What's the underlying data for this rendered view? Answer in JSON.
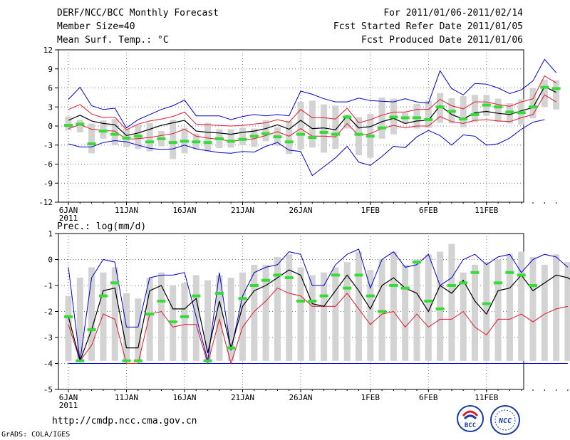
{
  "header": {
    "title": "DERF/NCC/BCC Monthly Forecast",
    "member": "Member Size=40",
    "variable": "Mean Surf. Temp.: °C",
    "period": "For 2011/01/06-2011/02/14",
    "started": "Fcst Started Refer Date 2011/01/05",
    "produced": "Fcst Produced Date 2011/01/06"
  },
  "footer": {
    "url": "http://cmdp.ncc.cma.gov.cn",
    "grads": "GrADS: COLA/IGES",
    "logo_bcc": "BCC",
    "logo_ncc": "NCC"
  },
  "colors": {
    "spread": "#d3d3d3",
    "envelope": "#0000cd",
    "inner": "#e0162b",
    "mean": "#000000",
    "control": "#33dd33"
  },
  "chart_data": [
    {
      "type": "line",
      "title": "Mean Surf. Temp.: °C",
      "ylabel": "°C",
      "ylim": [
        -12,
        12
      ],
      "yticks": [
        -12,
        -9,
        -6,
        -3,
        0,
        3,
        6,
        9,
        12
      ],
      "x": "days 0..39 (2011-01-06 .. 2011-02-14)",
      "xtick_labels": [
        "6JAN",
        "11JAN",
        "16JAN",
        "21JAN",
        "26JAN",
        "1FEB",
        "6FEB",
        "11FEB"
      ],
      "xtick_days": [
        0,
        5,
        10,
        15,
        20,
        26,
        31,
        36
      ],
      "year_label": "2011",
      "series": [
        {
          "name": "max",
          "values": [
            4.2,
            6.1,
            3.2,
            2.6,
            2.8,
            -0.3,
            1.0,
            1.8,
            2.6,
            3.2,
            4.1,
            1.6,
            1.6,
            1.6,
            1.0,
            1.5,
            1.8,
            1.6,
            1.8,
            1.6,
            5.5,
            5.0,
            4.3,
            3.8,
            3.8,
            4.4,
            4.0,
            3.9,
            3.8,
            4.3,
            3.8,
            3.6,
            8.7,
            5.9,
            4.9,
            6.7,
            6.6,
            6.0,
            5.1,
            5.7,
            7.1,
            10.5,
            8.4
          ]
        },
        {
          "name": "upper",
          "values": [
            2.6,
            3.4,
            1.9,
            1.3,
            1.4,
            -0.6,
            0.3,
            0.8,
            1.1,
            1.5,
            2.2,
            0.3,
            0.2,
            0.1,
            0.0,
            0.1,
            0.3,
            0.5,
            1.0,
            0.6,
            2.6,
            1.3,
            1.3,
            1.1,
            2.8,
            0.5,
            1.0,
            1.7,
            2.2,
            2.2,
            2.6,
            2.6,
            4.2,
            3.2,
            2.7,
            3.8,
            3.8,
            3.4,
            3.1,
            3.8,
            4.3,
            7.9,
            6.8
          ]
        },
        {
          "name": "mean",
          "values": [
            0.9,
            1.7,
            0.8,
            0.4,
            0.2,
            -1.5,
            -1.1,
            -0.5,
            0.1,
            0.5,
            0.9,
            -0.8,
            -1.0,
            -1.1,
            -1.3,
            -1.0,
            -0.8,
            -0.4,
            0.2,
            -0.5,
            0.9,
            -0.4,
            -0.3,
            -0.6,
            1.6,
            -0.3,
            -0.1,
            0.7,
            1.2,
            0.4,
            0.8,
            0.9,
            3.2,
            1.8,
            1.1,
            2.1,
            2.3,
            2.0,
            1.8,
            2.4,
            2.9,
            6.2,
            5.3
          ]
        },
        {
          "name": "lower",
          "values": [
            -0.4,
            0.2,
            -0.5,
            -0.7,
            -0.8,
            -2.1,
            -2.0,
            -1.8,
            -1.5,
            -1.2,
            -0.5,
            -1.6,
            -1.9,
            -2.1,
            -2.4,
            -2.2,
            -2.0,
            -1.5,
            -0.9,
            -1.6,
            -0.4,
            -1.6,
            -1.6,
            -1.7,
            0.4,
            -1.5,
            -1.2,
            -0.4,
            0.1,
            -0.3,
            0.0,
            0.0,
            1.5,
            0.7,
            0.4,
            0.9,
            1.0,
            0.8,
            0.7,
            1.3,
            1.8,
            4.9,
            3.8
          ]
        },
        {
          "name": "min",
          "values": [
            -2.8,
            -3.3,
            -3.3,
            -2.6,
            -2.3,
            -2.5,
            -3.0,
            -3.5,
            -3.7,
            -3.6,
            -3.0,
            -3.6,
            -3.9,
            -4.2,
            -4.3,
            -4.0,
            -4.1,
            -3.2,
            -2.6,
            -3.8,
            -4.0,
            -7.8,
            -6.4,
            -5.0,
            -3.2,
            -5.7,
            -6.2,
            -4.8,
            -3.2,
            -3.4,
            -1.7,
            -0.7,
            -1.5,
            -3.0,
            -1.4,
            -1.6,
            -3.0,
            -2.8,
            -1.9,
            -0.5,
            0.6,
            1.0
          ]
        },
        {
          "name": "control",
          "values": [
            0.1,
            0.3,
            -2.8,
            -0.8,
            -1.3,
            -1.9,
            -1.6,
            -2.5,
            -2.0,
            -2.6,
            -2.4,
            -2.5,
            -2.6,
            -2.0,
            -2.4,
            -2.1,
            -1.6,
            -1.2,
            -1.7,
            -2.5,
            -1.3,
            -1.8,
            -1.0,
            -1.3,
            1.4,
            -1.3,
            -1.6,
            -0.3,
            1.4,
            1.3,
            1.3,
            1.0,
            3.0,
            2.3,
            1.1,
            1.8,
            3.3,
            3.0,
            2.2,
            2.1,
            3.0,
            6.1,
            5.9
          ]
        },
        {
          "name": "spread_top",
          "values": [
            1.5,
            1.0,
            0.4,
            0.9,
            1.1,
            -0.4,
            0.2,
            0.5,
            -0.8,
            1.0,
            -0.3,
            -1.2,
            0.5,
            -0.5,
            -0.5,
            -0.3,
            -0.4,
            0.9,
            -0.2,
            0.8,
            3.8,
            4.0,
            3.4,
            3.2,
            1.8,
            1.4,
            1.9,
            4.5,
            4.3,
            2.1,
            3.5,
            4.0,
            5.2,
            4.4,
            4.7,
            4.9,
            4.9,
            4.3,
            3.6,
            4.2,
            6.0,
            7.3,
            7.2
          ]
        },
        {
          "name": "spread_bottom",
          "values": [
            -0.7,
            -1.0,
            -4.3,
            -2.0,
            -3.0,
            -3.3,
            -3.6,
            -4.0,
            -3.2,
            -5.2,
            -4.3,
            -3.6,
            -4.0,
            -3.5,
            -3.4,
            -3.0,
            -3.3,
            -2.4,
            -3.1,
            -4.4,
            -3.7,
            -3.4,
            -4.2,
            -3.6,
            -0.4,
            -4.6,
            -5.0,
            -2.0,
            -1.3,
            0.3,
            -0.4,
            -0.3,
            0.5,
            0.4,
            -0.2,
            0.6,
            1.6,
            0.6,
            0.4,
            0.2,
            1.2,
            3.0,
            2.6
          ]
        }
      ]
    },
    {
      "type": "line",
      "title": "Prec.: log(mm/d)",
      "ylabel": "log(mm/d)",
      "ylim": [
        -5,
        1
      ],
      "yticks": [
        -5,
        -4,
        -3,
        -2,
        -1,
        0,
        1
      ],
      "x": "days 0..39 (2011-01-06 .. 2011-02-14)",
      "xtick_labels": [
        "6JAN",
        "11JAN",
        "16JAN",
        "21JAN",
        "26JAN",
        "1FEB",
        "6FEB",
        "11FEB"
      ],
      "xtick_days": [
        0,
        5,
        10,
        15,
        20,
        26,
        31,
        36
      ],
      "year_label": "2011",
      "series": [
        {
          "name": "max",
          "values": [
            -0.3,
            -3.9,
            -0.7,
            0.0,
            -0.1,
            -2.6,
            -2.6,
            -0.7,
            -0.6,
            -0.6,
            -0.5,
            -2.2,
            -3.9,
            -0.5,
            -3.5,
            -1.4,
            -0.5,
            -0.3,
            -0.2,
            0.3,
            0.2,
            -1.0,
            -1.0,
            -0.2,
            0.2,
            0.4,
            -1.1,
            0.0,
            0.3,
            -0.3,
            -0.2,
            0.2,
            -1.0,
            -0.7,
            0.0,
            0.2,
            -0.2,
            0.1,
            0.2,
            -0.5,
            0.0,
            0.2,
            0.1,
            -0.3
          ]
        },
        {
          "name": "mean",
          "values": [
            -2.2,
            -3.9,
            -2.7,
            -1.2,
            -1.1,
            -3.4,
            -3.4,
            -1.2,
            -1.0,
            -1.9,
            -1.9,
            -1.5,
            -3.6,
            -1.6,
            -3.4,
            -1.8,
            -1.2,
            -1.0,
            -0.7,
            -0.4,
            -0.6,
            -1.7,
            -1.8,
            -1.2,
            -0.6,
            -1.2,
            -1.9,
            -1.0,
            -0.7,
            -1.1,
            -1.3,
            -2.0,
            -1.0,
            -1.3,
            -0.8,
            -1.6,
            -2.1,
            -1.2,
            -1.1,
            -0.6,
            -1.2,
            -0.9,
            -0.6,
            -0.7,
            -1.0
          ]
        },
        {
          "name": "upper",
          "values": [
            -2.5,
            -3.9,
            -3.3,
            -2.1,
            -2.3,
            -4.0,
            -4.0,
            -2.1,
            -2.0,
            -2.6,
            -2.5,
            -2.5,
            -4.0,
            -2.3,
            -4.0,
            -2.6,
            -2.0,
            -1.6,
            -1.1,
            -1.3,
            -1.4,
            -1.8,
            -1.8,
            -1.8,
            -1.3,
            -1.9,
            -2.5,
            -2.1,
            -2.0,
            -2.6,
            -2.1,
            -2.6,
            -2.3,
            -2.3,
            -2.0,
            -2.6,
            -2.9,
            -2.3,
            -2.3,
            -2.1,
            -2.4,
            -2.1,
            -1.9,
            -1.8
          ]
        },
        {
          "name": "min",
          "values": [
            -4.0,
            -4.0,
            -4.0,
            -4.0,
            -4.0,
            -4.0,
            -4.0,
            -4.0,
            -4.0,
            -4.0,
            -4.0,
            -4.0,
            -4.0,
            -4.0,
            -4.0,
            -4.0,
            -4.0,
            -4.0,
            -4.0,
            -4.0,
            -4.0,
            -4.0,
            -4.0,
            -4.0,
            -4.0,
            -4.0,
            -4.0,
            -4.0,
            -4.0,
            -4.0,
            -4.0,
            -4.0,
            -4.0,
            -4.0,
            -4.0,
            -4.0,
            -4.0,
            -4.0,
            -4.0,
            -4.0,
            -4.0,
            -4.0,
            -4.0,
            -4.0
          ]
        },
        {
          "name": "control",
          "values": [
            -2.2,
            -3.9,
            -2.7,
            -1.4,
            -0.9,
            -3.9,
            -3.9,
            -2.1,
            -1.6,
            -2.4,
            -2.2,
            -1.4,
            -3.9,
            -1.3,
            -3.4,
            -1.5,
            -1.0,
            -0.8,
            -0.6,
            -0.7,
            -1.6,
            -1.6,
            -1.4,
            -0.6,
            -1.1,
            -0.6,
            -1.4,
            -2.0,
            -1.0,
            -1.1,
            -0.1,
            -1.6,
            -1.9,
            -1.0,
            -0.9,
            -0.5,
            -1.7,
            -0.9,
            -0.5,
            -0.6,
            -1.0
          ]
        },
        {
          "name": "spread_top",
          "values": [
            -1.4,
            -0.7,
            -0.3,
            -0.5,
            -0.3,
            -1.3,
            -1.5,
            -0.7,
            -0.5,
            -1.0,
            -0.9,
            -0.6,
            -0.8,
            -0.6,
            -0.7,
            -0.5,
            -0.2,
            -0.2,
            0.1,
            0.2,
            -0.3,
            -0.6,
            -0.5,
            -0.3,
            -0.1,
            0.3,
            -0.4,
            0.0,
            0.3,
            -0.2,
            0.0,
            0.2,
            0.3,
            0.6,
            -0.5,
            -0.2,
            -0.1,
            0.0,
            0.2,
            0.3,
            0.1,
            -0.2,
            0.2,
            -0.1
          ]
        },
        {
          "name": "spread_bottom",
          "values": [
            -3.9,
            -3.9,
            -3.9,
            -3.9,
            -3.9,
            -3.9,
            -3.9,
            -3.9,
            -3.9,
            -3.9,
            -3.9,
            -3.9,
            -3.9,
            -3.9,
            -3.9,
            -3.9,
            -3.9,
            -3.9,
            -3.9,
            -3.9,
            -3.9,
            -3.9,
            -3.9,
            -3.9,
            -3.9,
            -3.9,
            -3.9,
            -3.9,
            -3.9,
            -3.9,
            -3.9,
            -3.9,
            -3.9,
            -3.9,
            -3.9,
            -3.9,
            -3.9,
            -3.9,
            -3.9,
            -3.9,
            -3.9,
            -3.9,
            -3.9,
            -3.9
          ]
        }
      ]
    }
  ]
}
